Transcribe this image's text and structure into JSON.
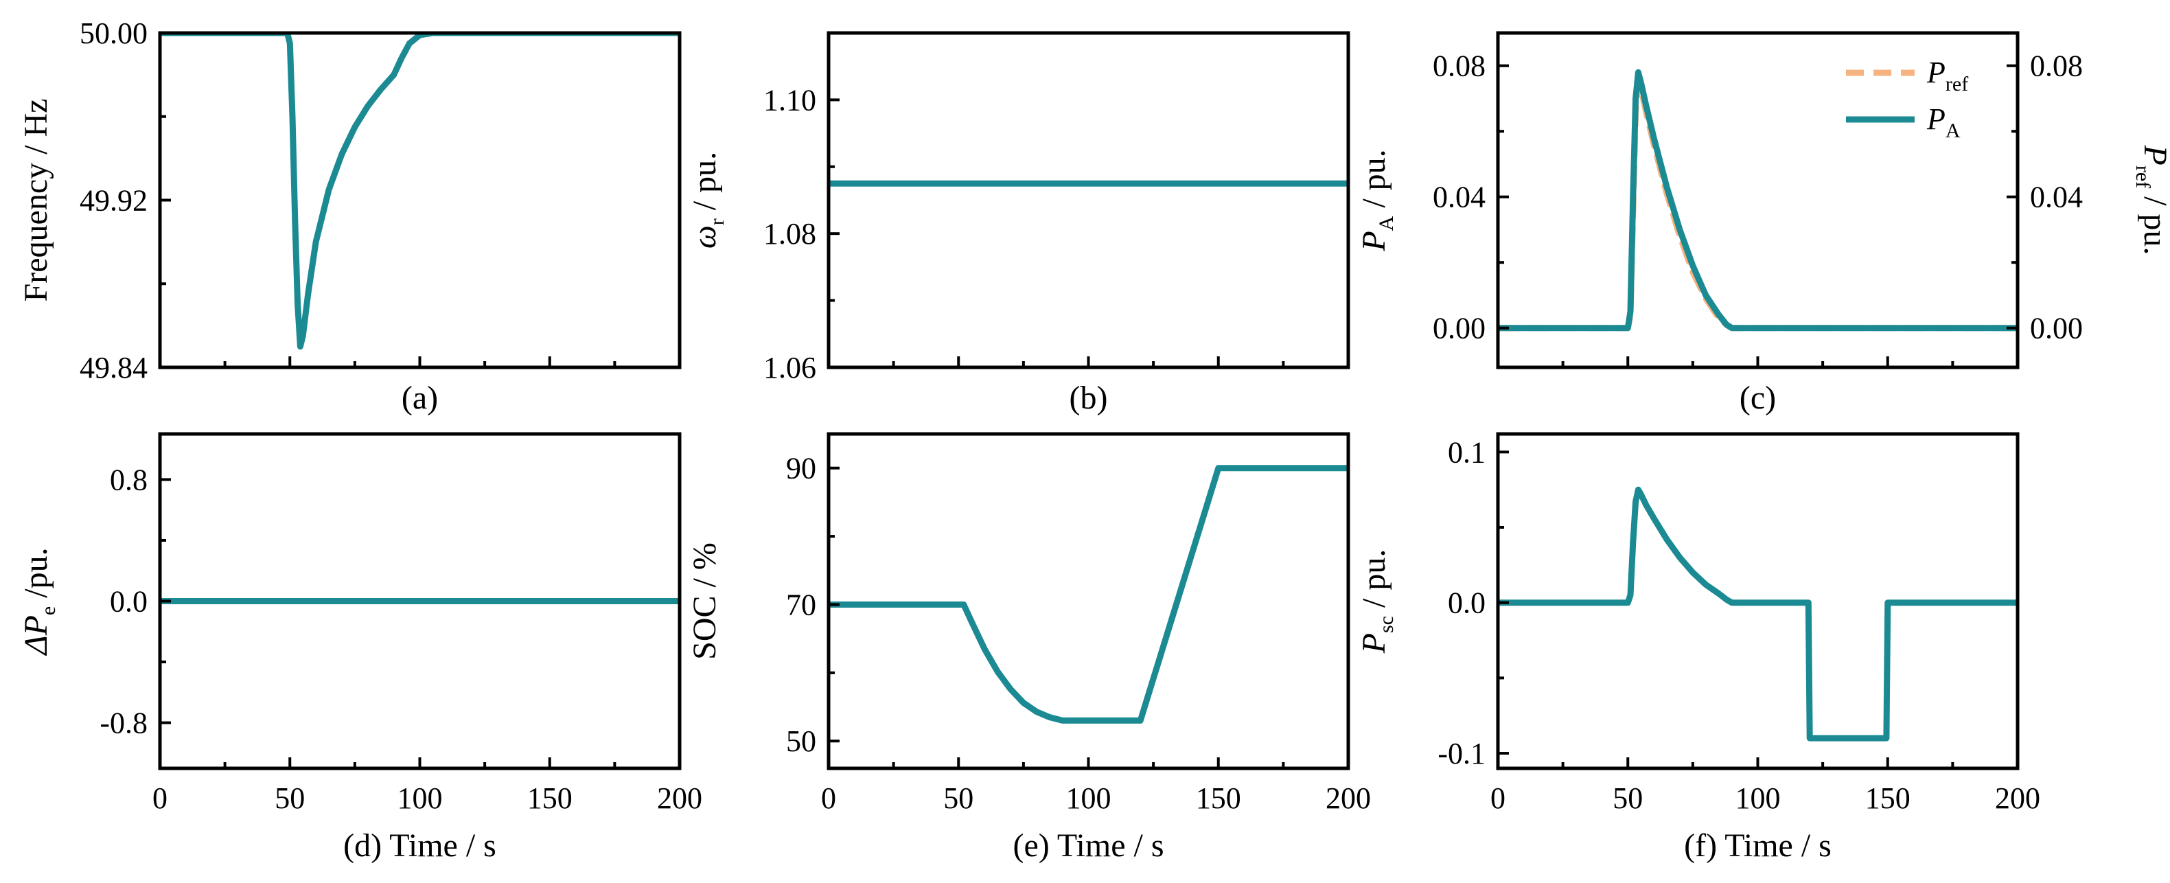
{
  "colors": {
    "teal": "#1b8a92",
    "orange": "#f6b37f",
    "axis": "#000000"
  },
  "chart_data": [
    {
      "id": "a",
      "type": "line",
      "caption": "(a)",
      "ylabel": "Frequency / Hz",
      "xlabel": "",
      "xlim": [
        0,
        200
      ],
      "ylim": [
        49.84,
        50.0
      ],
      "yticks": [
        49.84,
        49.92,
        50.0
      ],
      "ytick_labels": [
        "49.84",
        "49.92",
        "50.00"
      ],
      "xticks": [
        0,
        50,
        100,
        150,
        200
      ],
      "xtick_labels": [],
      "series": [
        {
          "name": "Frequency",
          "color": "#1b8a92",
          "dash": "",
          "x": [
            0,
            49,
            50,
            51,
            52,
            53,
            54,
            55,
            57,
            60,
            65,
            70,
            75,
            80,
            85,
            90,
            93,
            96,
            100,
            105,
            110,
            120,
            200
          ],
          "y": [
            50.0,
            50.0,
            49.995,
            49.96,
            49.91,
            49.87,
            49.85,
            49.855,
            49.875,
            49.9,
            49.925,
            49.942,
            49.955,
            49.965,
            49.973,
            49.98,
            49.988,
            49.995,
            49.999,
            50.0,
            50.0,
            50.0,
            50.0
          ]
        }
      ]
    },
    {
      "id": "b",
      "type": "line",
      "caption": "(b)",
      "ylabel": "ω_r / pu.",
      "ylabel_main": "ω",
      "ylabel_sub": "r",
      "ylabel_rest": " / pu.",
      "xlabel": "",
      "xlim": [
        0,
        200
      ],
      "ylim": [
        1.06,
        1.11
      ],
      "yticks": [
        1.06,
        1.08,
        1.1
      ],
      "ytick_labels": [
        "1.06",
        "1.08",
        "1.10"
      ],
      "xticks": [
        0,
        50,
        100,
        150,
        200
      ],
      "xtick_labels": [],
      "series": [
        {
          "name": "ω_r",
          "color": "#1b8a92",
          "dash": "",
          "x": [
            0,
            200
          ],
          "y": [
            1.0875,
            1.0875
          ]
        }
      ]
    },
    {
      "id": "c",
      "type": "line",
      "caption": "(c)",
      "ylabel": "P_A / pu.",
      "ylabel_main": "P",
      "ylabel_sub": "A",
      "ylabel_rest": " / pu.",
      "ylabel_right": "P_ref / pu.",
      "ylabel_right_main": "P",
      "ylabel_right_sub": "ref",
      "ylabel_right_rest": " / pu.",
      "xlabel": "",
      "xlim": [
        0,
        200
      ],
      "ylim": [
        -0.012,
        0.09
      ],
      "yticks": [
        0.0,
        0.04,
        0.08
      ],
      "ytick_labels": [
        "0.00",
        "0.04",
        "0.08"
      ],
      "ytick_labels_right": [
        "0.00",
        "0.04",
        "0.08"
      ],
      "xticks": [
        0,
        50,
        100,
        150,
        200
      ],
      "xtick_labels": [],
      "legend": [
        {
          "main": "P",
          "sub": "ref",
          "color": "#f6b37f",
          "dash": "28 16"
        },
        {
          "main": "P",
          "sub": "A",
          "color": "#1b8a92",
          "dash": ""
        }
      ],
      "series": [
        {
          "name": "P_A",
          "color": "#1b8a92",
          "dash": "",
          "x": [
            0,
            50,
            51,
            52,
            53,
            54,
            55,
            57,
            60,
            65,
            70,
            75,
            80,
            85,
            88,
            90,
            200
          ],
          "y": [
            0,
            0,
            0.005,
            0.04,
            0.07,
            0.078,
            0.075,
            0.068,
            0.058,
            0.043,
            0.03,
            0.019,
            0.01,
            0.004,
            0.001,
            0,
            0
          ]
        }
      ],
      "series_right": [
        {
          "name": "P_ref",
          "color": "#f6b37f",
          "dash": "28 16",
          "x": [
            0,
            50,
            51,
            52,
            53,
            54,
            55,
            57,
            60,
            65,
            70,
            75,
            80,
            85,
            88,
            90,
            200
          ],
          "y": [
            0,
            0,
            0.004,
            0.035,
            0.066,
            0.075,
            0.073,
            0.066,
            0.056,
            0.041,
            0.028,
            0.017,
            0.009,
            0.003,
            0.001,
            0,
            0
          ]
        }
      ]
    },
    {
      "id": "d",
      "type": "line",
      "caption": "(d) Time / s",
      "ylabel": "ΔP_e /pu.",
      "ylabel_main": "ΔP",
      "ylabel_sub": "e",
      "ylabel_rest": " /pu.",
      "xlabel": "Time / s",
      "xlim": [
        0,
        200
      ],
      "ylim": [
        -1.1,
        1.1
      ],
      "yticks": [
        -0.8,
        0.0,
        0.8
      ],
      "ytick_labels": [
        "-0.8",
        "0.0",
        "0.8"
      ],
      "xticks": [
        0,
        50,
        100,
        150,
        200
      ],
      "xtick_labels": [
        "0",
        "50",
        "100",
        "150",
        "200"
      ],
      "series": [
        {
          "name": "ΔP_e",
          "color": "#1b8a92",
          "dash": "",
          "x": [
            0,
            200
          ],
          "y": [
            0,
            0
          ]
        }
      ]
    },
    {
      "id": "e",
      "type": "line",
      "caption": "(e) Time / s",
      "ylabel": "SOC / %",
      "xlabel": "Time / s",
      "xlim": [
        0,
        200
      ],
      "ylim": [
        46,
        95
      ],
      "yticks": [
        50,
        70,
        90
      ],
      "ytick_labels": [
        "50",
        "70",
        "90"
      ],
      "xticks": [
        0,
        50,
        100,
        150,
        200
      ],
      "xtick_labels": [
        "0",
        "50",
        "100",
        "150",
        "200"
      ],
      "series": [
        {
          "name": "SOC",
          "color": "#1b8a92",
          "dash": "",
          "x": [
            0,
            52,
            55,
            60,
            65,
            70,
            75,
            80,
            85,
            90,
            120,
            150,
            200
          ],
          "y": [
            70,
            70,
            67.5,
            63.5,
            60.2,
            57.6,
            55.6,
            54.3,
            53.5,
            53,
            53,
            90,
            90
          ]
        }
      ]
    },
    {
      "id": "f",
      "type": "line",
      "caption": "(f) Time / s",
      "ylabel": "P_sc / pu.",
      "ylabel_main": "P",
      "ylabel_sub": "sc",
      "ylabel_rest": " / pu.",
      "xlabel": "Time / s",
      "xlim": [
        0,
        200
      ],
      "ylim": [
        -0.11,
        0.112
      ],
      "yticks": [
        -0.1,
        0.0,
        0.1
      ],
      "ytick_labels": [
        "-0.1",
        "0.0",
        "0.1"
      ],
      "xticks": [
        0,
        50,
        100,
        150,
        200
      ],
      "xtick_labels": [
        "0",
        "50",
        "100",
        "150",
        "200"
      ],
      "series": [
        {
          "name": "P_sc",
          "color": "#1b8a92",
          "dash": "",
          "x": [
            0,
            50,
            51,
            52,
            53,
            54,
            55,
            57,
            60,
            65,
            70,
            75,
            80,
            85,
            88,
            90,
            119.5,
            120,
            149.5,
            150,
            200
          ],
          "y": [
            0,
            0,
            0.005,
            0.04,
            0.067,
            0.075,
            0.072,
            0.065,
            0.056,
            0.042,
            0.03,
            0.02,
            0.012,
            0.006,
            0.002,
            0,
            0,
            -0.09,
            -0.09,
            0,
            0
          ]
        }
      ]
    }
  ]
}
